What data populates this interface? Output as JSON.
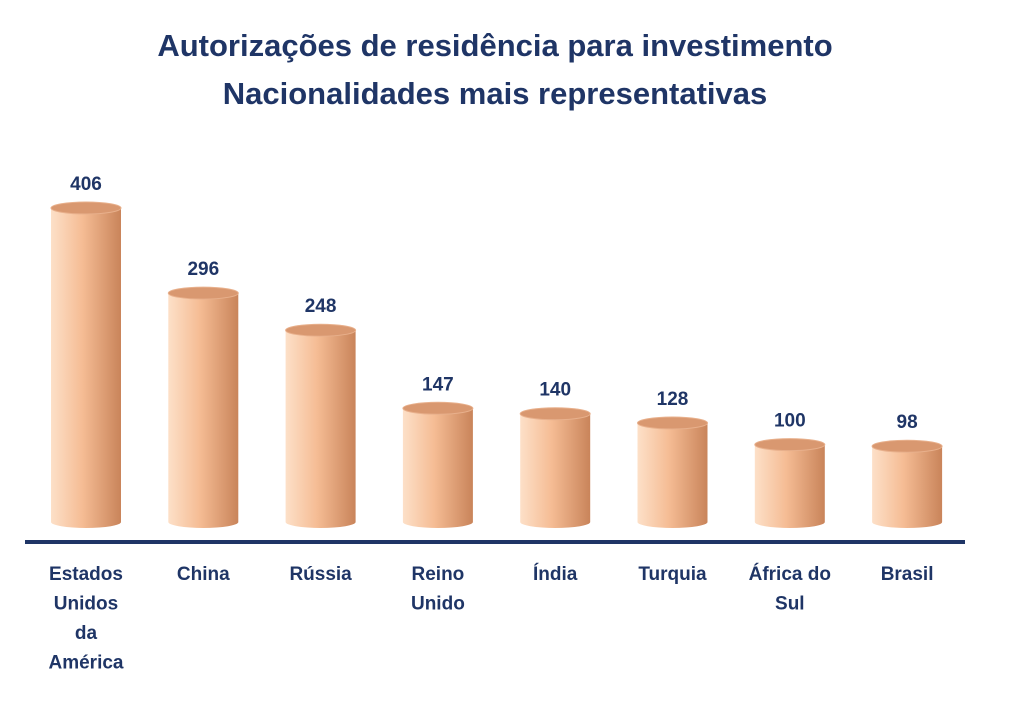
{
  "chart_data": {
    "type": "bar",
    "title_line1": "Autorizações de residência para investimento",
    "title_line2": "Nacionalidades mais representativas",
    "categories": [
      [
        "Estados",
        "Unidos",
        "da",
        "América"
      ],
      [
        "China"
      ],
      [
        "Rússia"
      ],
      [
        "Reino",
        "Unido"
      ],
      [
        "Índia"
      ],
      [
        "Turquia"
      ],
      [
        "África do",
        "Sul"
      ],
      [
        "Brasil"
      ]
    ],
    "values": [
      406,
      296,
      248,
      147,
      140,
      128,
      100,
      98
    ],
    "data_labels": [
      "406",
      "296",
      "248",
      "147",
      "140",
      "128",
      "100",
      "98"
    ],
    "xlabel": "",
    "ylabel": "",
    "ylim": [
      0,
      406
    ],
    "grid": false,
    "legend": "none",
    "colors": {
      "title": "#1f3566",
      "bar_light": "#fde0c8",
      "bar_mid": "#f5bc94",
      "bar_dark": "#c9845a",
      "bar_top": "#d99870",
      "axis": "#1f3566"
    }
  }
}
